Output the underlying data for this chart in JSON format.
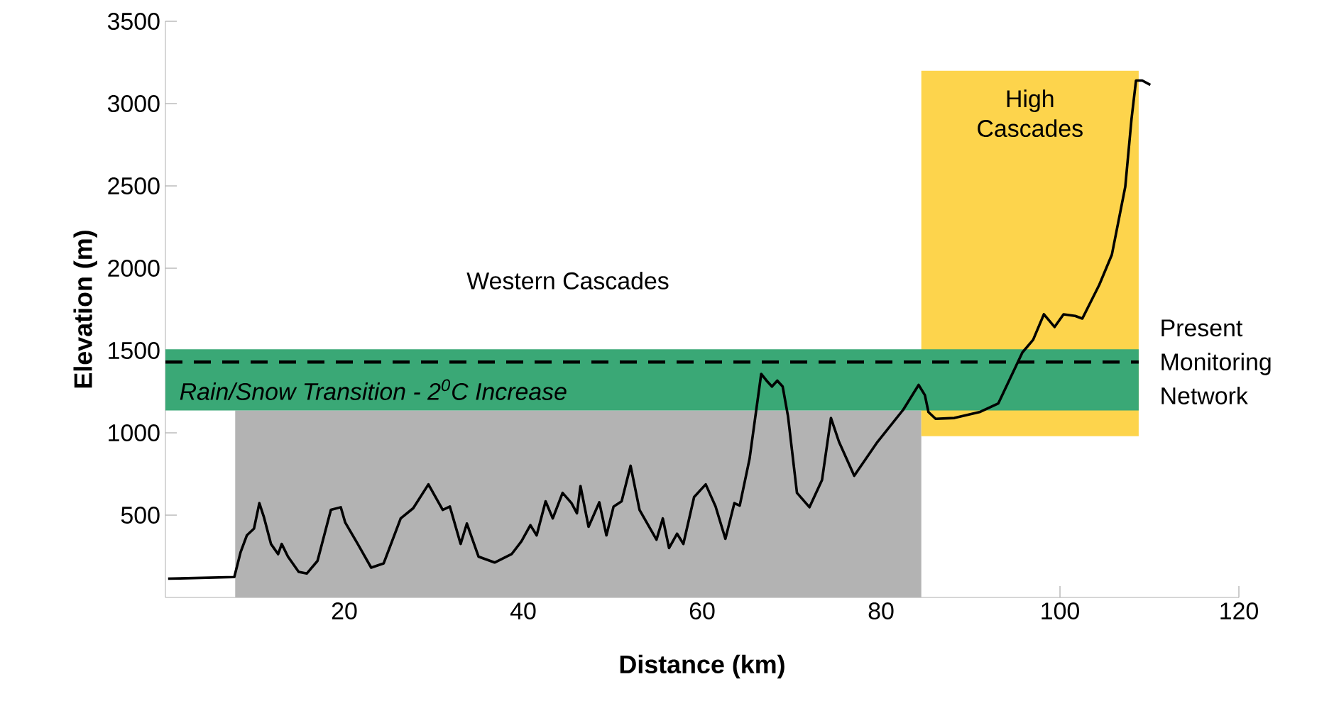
{
  "chart_data": {
    "type": "line",
    "xlabel": "Distance (km)",
    "ylabel": "Elevation (m)",
    "xlim": [
      0,
      120
    ],
    "ylim": [
      0,
      3500
    ],
    "xticks": [
      20,
      40,
      60,
      80,
      100,
      120
    ],
    "yticks": [
      500,
      1000,
      1500,
      2000,
      2500,
      3000,
      3500
    ],
    "x": [
      0.3,
      7.7,
      8.4,
      9.1,
      9.9,
      10.5,
      11,
      11.8,
      12.6,
      13,
      13.7,
      14.9,
      15.8,
      17,
      18.5,
      19.6,
      20.1,
      21.5,
      23,
      24.4,
      26.3,
      27.7,
      29.4,
      31,
      31.8,
      33,
      33.7,
      35,
      36.8,
      38.7,
      39.8,
      40.8,
      41.5,
      42.5,
      43.3,
      44.4,
      45.4,
      46,
      46.4,
      47.3,
      48.5,
      49.3,
      50.1,
      51,
      52,
      53,
      54.9,
      55.6,
      56.3,
      57.2,
      57.9,
      59.1,
      60.4,
      61.5,
      62.6,
      63.6,
      64.2,
      65.3,
      66.6,
      67.2,
      67.8,
      68.4,
      69,
      69.6,
      70.6,
      72,
      73.4,
      74.4,
      75.3,
      77,
      79.6,
      82.5,
      84.2,
      84.9,
      85.3,
      86.1,
      88.2,
      91,
      93.1,
      95.8,
      97,
      98.2,
      99.4,
      100.4,
      101.7,
      102.5,
      104.4,
      105.8,
      107.3,
      108,
      108.5,
      109.2,
      110.1
    ],
    "series": [
      {
        "color": "#000000",
        "values": [
          114,
          124,
          274,
          377,
          418,
          573,
          490,
          325,
          263,
          325,
          248,
          155,
          145,
          222,
          532,
          548,
          455,
          325,
          181,
          207,
          480,
          542,
          687,
          532,
          552,
          325,
          449,
          248,
          212,
          263,
          341,
          439,
          377,
          584,
          480,
          635,
          573,
          511,
          677,
          429,
          578,
          377,
          552,
          584,
          800,
          532,
          351,
          480,
          300,
          387,
          325,
          610,
          687,
          553,
          356,
          573,
          558,
          842,
          1358,
          1317,
          1281,
          1317,
          1281,
          1100,
          635,
          548,
          713,
          1090,
          945,
          739,
          945,
          1142,
          1291,
          1229,
          1126,
          1085,
          1090,
          1126,
          1178,
          1488,
          1565,
          1720,
          1643,
          1720,
          1710,
          1694,
          1900,
          2082,
          2495,
          2908,
          3140,
          3140,
          3114
        ]
      }
    ],
    "bands": [
      {
        "axis": "x",
        "from": 7.8,
        "to": 84.5,
        "color": "#b3b3b3"
      },
      {
        "axis": "x",
        "from": 84.5,
        "to": 108.8,
        "label": "High Cascades",
        "color": "#fdd44c"
      },
      {
        "axis": "y",
        "from": 1136,
        "to": 1508,
        "label": "Rain/Snow Transition - 2$^{0}$C Increase",
        "color": "#3aa876"
      }
    ],
    "ref_lines": [
      {
        "axis": "y",
        "value": 1430,
        "label": "Present Monitoring Network",
        "color": "#000000",
        "line_style": "dashed"
      }
    ],
    "annotations": [
      "Western Cascades"
    ],
    "marker": "none",
    "line_style": "solid",
    "grid": false
  }
}
